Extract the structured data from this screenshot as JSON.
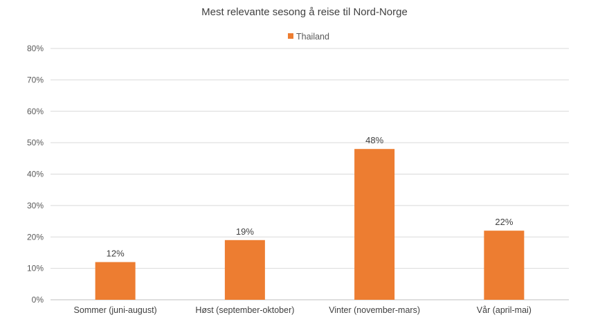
{
  "chart_data": {
    "type": "bar",
    "title": "Mest relevante sesong å reise til Nord-Norge",
    "categories": [
      "Sommer (juni-august)",
      "Høst (september-oktober)",
      "Vinter (november-mars)",
      "Vår (april-mai)"
    ],
    "series": [
      {
        "name": "Thailand",
        "values": [
          12,
          19,
          48,
          22
        ],
        "color": "#ED7D31"
      }
    ],
    "data_labels": [
      "12%",
      "19%",
      "48%",
      "22%"
    ],
    "ylim": [
      0,
      80
    ],
    "yticks": [
      0,
      10,
      20,
      30,
      40,
      50,
      60,
      70,
      80
    ],
    "ytick_labels": [
      "0%",
      "10%",
      "20%",
      "30%",
      "40%",
      "50%",
      "60%",
      "70%",
      "80%"
    ],
    "grid": true,
    "legend_position": "top-center",
    "colors": {
      "grid": "#D9D9D9",
      "text": "#595959"
    }
  }
}
